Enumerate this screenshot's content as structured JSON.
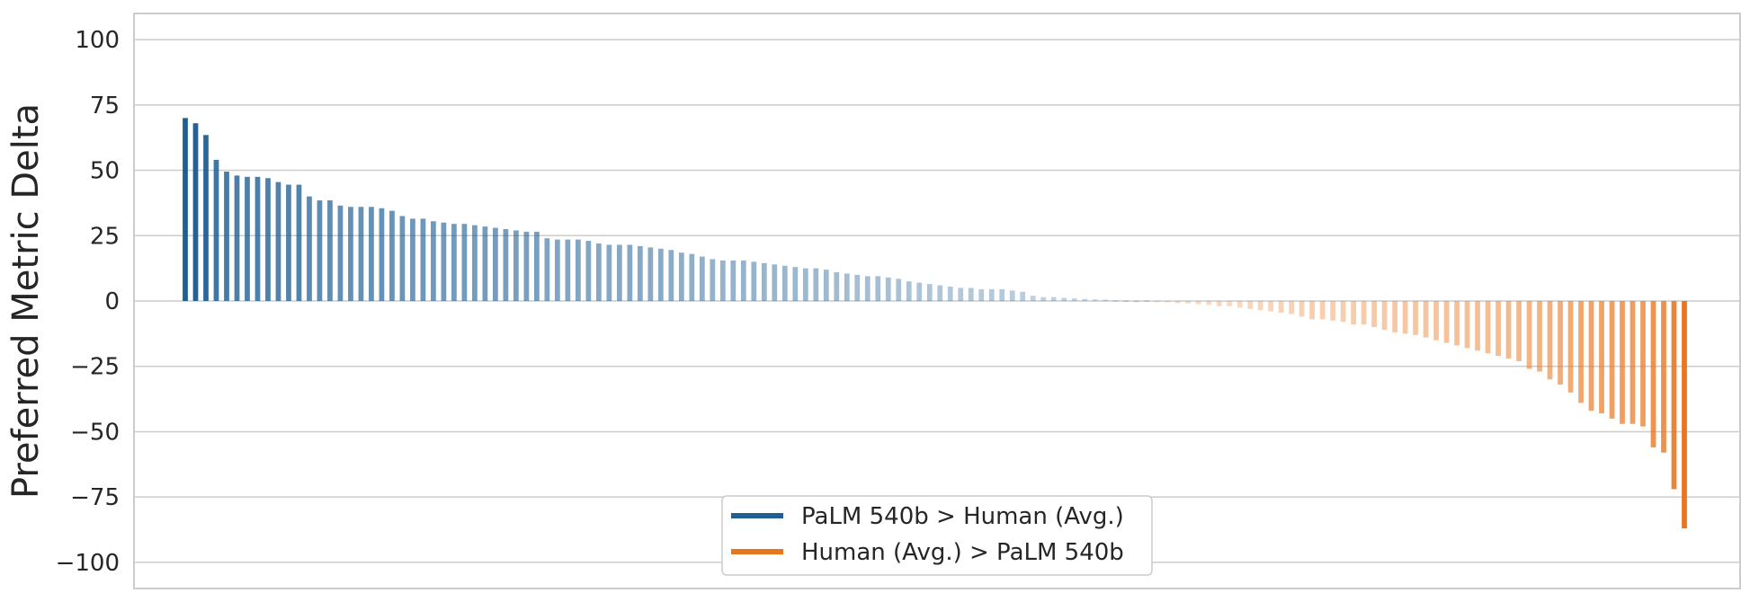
{
  "chart_data": {
    "type": "bar",
    "title": "",
    "xlabel": "",
    "ylabel": "Preferred Metric Delta",
    "ylim": [
      -110,
      110
    ],
    "yticks": [
      100,
      75,
      50,
      25,
      0,
      -25,
      -50,
      -75,
      -100
    ],
    "ytick_labels": [
      "100",
      "75",
      "50",
      "25",
      "0",
      "−25",
      "−50",
      "−75",
      "−100"
    ],
    "grid": true,
    "legend_position": "bottom-center",
    "colors": {
      "positive": "#1f5f94",
      "negative": "#e8761e"
    },
    "series": [
      {
        "name": "PaLM 540b > Human (Avg.)",
        "color": "#1f5f94"
      },
      {
        "name": "Human (Avg.) > PaLM 540b",
        "color": "#e8761e"
      }
    ],
    "values": [
      70,
      68,
      63.5,
      54,
      49.5,
      48,
      47.5,
      47.5,
      47,
      45.5,
      44.5,
      44.5,
      40,
      38.5,
      38.5,
      36.5,
      36,
      36,
      36,
      35.5,
      34.5,
      32.5,
      31.5,
      31.5,
      30.5,
      30,
      29.5,
      29.5,
      29,
      28.5,
      28,
      27.5,
      27,
      26.5,
      26.5,
      24,
      23.5,
      23.5,
      23.5,
      23,
      22,
      21.5,
      21.5,
      21.5,
      21,
      20.5,
      20,
      19.5,
      18.5,
      18,
      17,
      16,
      15.5,
      15.5,
      15.5,
      15,
      14.5,
      14,
      13.5,
      13,
      12.5,
      12.5,
      12,
      11,
      10.5,
      10,
      9.5,
      9.5,
      9,
      8.5,
      7.5,
      7,
      6.5,
      6,
      5.5,
      5,
      5,
      4.5,
      4.5,
      4.5,
      4,
      3.5,
      2,
      1.5,
      1.5,
      1.2,
      1,
      0.8,
      0.6,
      0.5,
      0.3,
      0.2,
      0.1,
      0.2,
      -0.3,
      -0.5,
      -0.8,
      -1,
      -1.2,
      -1.5,
      -2,
      -2,
      -2.5,
      -3,
      -3.5,
      -4,
      -4.5,
      -5,
      -6,
      -7,
      -7,
      -7.5,
      -8,
      -9,
      -9,
      -10,
      -11,
      -12,
      -12.5,
      -13,
      -14,
      -15,
      -16,
      -17,
      -18,
      -19,
      -20,
      -21,
      -22,
      -23,
      -26,
      -27,
      -30,
      -32,
      -35,
      -39,
      -42,
      -43,
      -45,
      -47,
      -47,
      -48,
      -56,
      -58,
      -72,
      -87
    ]
  }
}
